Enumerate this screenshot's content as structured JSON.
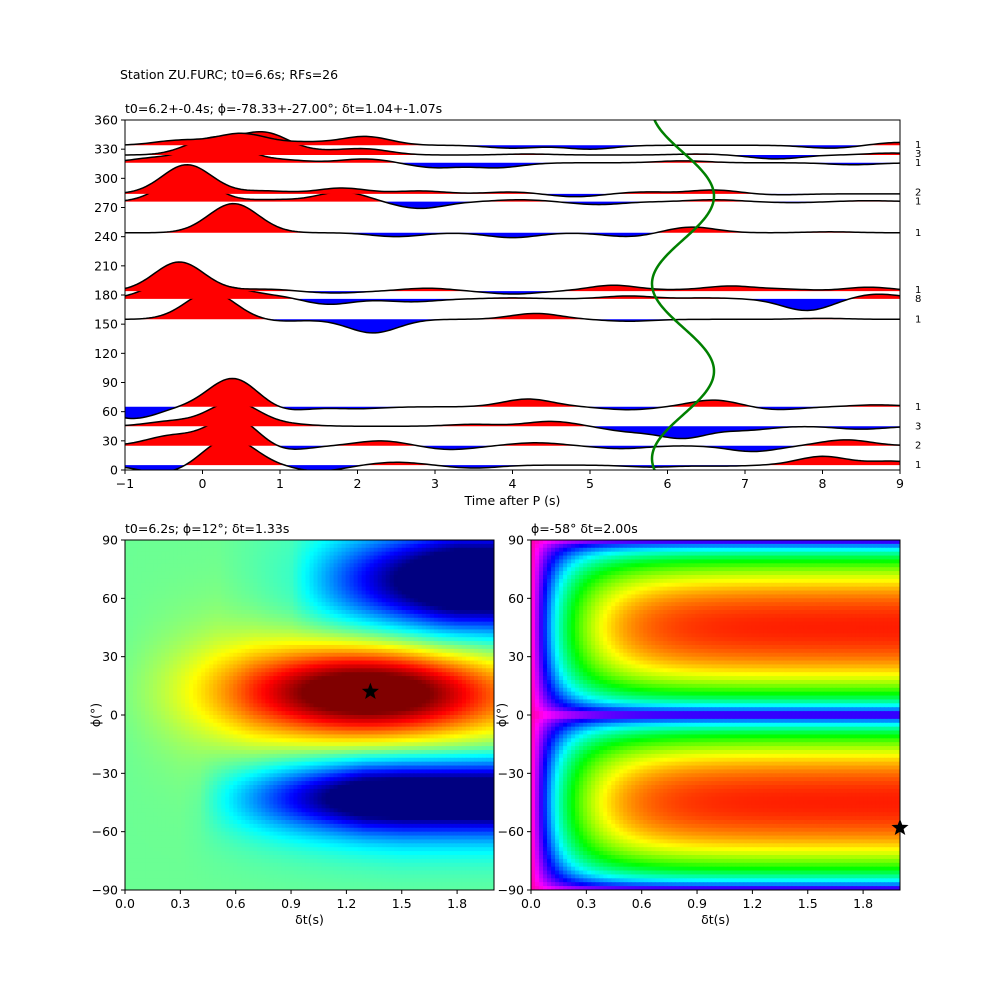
{
  "suptitle": "Station ZU.FURC; t0=6.6s; RFs=26",
  "chart_data": [
    {
      "id": "receiver-functions",
      "type": "line",
      "title": "t0=6.2+-0.4s; ϕ=-78.33+-27.00°; δt=1.04+-1.07s",
      "xlabel": "Time after P (s)",
      "ylabel": "",
      "xlim": [
        -1,
        9
      ],
      "ylim": [
        0,
        360
      ],
      "xticks": [
        "−1",
        "0",
        "1",
        "2",
        "3",
        "4",
        "5",
        "6",
        "7",
        "8",
        "9"
      ],
      "yticks": [
        "0",
        "30",
        "60",
        "90",
        "120",
        "150",
        "180",
        "210",
        "240",
        "270",
        "300",
        "330",
        "360"
      ],
      "positive_fill": "#ff0000",
      "negative_fill": "#0000ff",
      "traces": [
        {
          "baz": 5,
          "count": "1",
          "peaks": [
            [
              -0.5,
              -8
            ],
            [
              0.35,
              28
            ],
            [
              0.9,
              0
            ],
            [
              1.5,
              -6
            ],
            [
              2.5,
              3
            ],
            [
              3.5,
              -3
            ],
            [
              5.8,
              -2
            ],
            [
              6.7,
              -1
            ],
            [
              8.0,
              9
            ],
            [
              8.9,
              4
            ]
          ]
        },
        {
          "baz": 25,
          "count": "2",
          "peaks": [
            [
              -0.4,
              10
            ],
            [
              0.4,
              30
            ],
            [
              1.0,
              -6
            ],
            [
              2.3,
              5
            ],
            [
              3.2,
              -4
            ],
            [
              4.3,
              3
            ],
            [
              5.4,
              -3
            ],
            [
              7.1,
              -6
            ],
            [
              8.3,
              6
            ],
            [
              9.0,
              0
            ]
          ]
        },
        {
          "baz": 45,
          "count": "3",
          "peaks": [
            [
              -0.4,
              5
            ],
            [
              0.4,
              25
            ],
            [
              1.1,
              2
            ],
            [
              3.5,
              2
            ],
            [
              4.5,
              5
            ],
            [
              5.5,
              -5
            ],
            [
              6.2,
              -12
            ],
            [
              7.0,
              -4
            ],
            [
              8.5,
              -3
            ]
          ]
        },
        {
          "baz": 65,
          "count": "1",
          "peaks": [
            [
              -0.9,
              -12
            ],
            [
              0.4,
              30
            ],
            [
              1.0,
              -5
            ],
            [
              2.0,
              -2
            ],
            [
              3.0,
              0
            ],
            [
              4.2,
              8
            ],
            [
              5.5,
              -3
            ],
            [
              6.6,
              7
            ],
            [
              7.4,
              -3
            ],
            [
              8.7,
              2
            ]
          ]
        },
        {
          "baz": 155,
          "count": "1",
          "peaks": [
            [
              0.1,
              28
            ],
            [
              1.0,
              -2
            ],
            [
              2.2,
              -14
            ],
            [
              3.3,
              0
            ],
            [
              4.3,
              6
            ],
            [
              5.5,
              -2
            ],
            [
              6.4,
              0
            ],
            [
              7.2,
              0
            ],
            [
              8.0,
              1
            ]
          ]
        },
        {
          "baz": 176,
          "count": "8",
          "peaks": [
            [
              -0.4,
              18
            ],
            [
              0.3,
              11
            ],
            [
              1.0,
              3
            ],
            [
              1.6,
              -6
            ],
            [
              2.7,
              -3
            ],
            [
              4.0,
              1
            ],
            [
              5.5,
              3
            ],
            [
              6.5,
              1
            ],
            [
              7.8,
              -12
            ],
            [
              8.7,
              5
            ]
          ]
        },
        {
          "baz": 184,
          "count": "1",
          "peaks": [
            [
              -0.3,
              30
            ],
            [
              0.8,
              2
            ],
            [
              1.7,
              -2
            ],
            [
              2.9,
              3
            ],
            [
              4.0,
              -3
            ],
            [
              5.3,
              6
            ],
            [
              6.1,
              1
            ],
            [
              6.8,
              5
            ],
            [
              7.5,
              2
            ],
            [
              8.6,
              4
            ]
          ]
        },
        {
          "baz": 244,
          "count": "1",
          "peaks": [
            [
              0.4,
              30
            ],
            [
              1.7,
              0
            ],
            [
              2.5,
              -4
            ],
            [
              4.0,
              -5
            ],
            [
              5.5,
              -4
            ],
            [
              6.3,
              6
            ],
            [
              7.1,
              0
            ],
            [
              8.1,
              1
            ]
          ]
        },
        {
          "baz": 276,
          "count": "1",
          "peaks": [
            [
              -0.2,
              28
            ],
            [
              0.9,
              2
            ],
            [
              1.8,
              10
            ],
            [
              2.8,
              -7
            ],
            [
              4.1,
              2
            ],
            [
              5.1,
              -3
            ],
            [
              6.0,
              0
            ],
            [
              6.6,
              2
            ],
            [
              7.6,
              -1
            ],
            [
              8.6,
              1
            ]
          ]
        },
        {
          "baz": 284,
          "count": "2",
          "peaks": [
            [
              -0.2,
              30
            ],
            [
              0.8,
              3
            ],
            [
              1.8,
              6
            ],
            [
              2.8,
              3
            ],
            [
              4.0,
              2
            ],
            [
              4.8,
              -3
            ],
            [
              5.7,
              2
            ],
            [
              6.6,
              4
            ],
            [
              7.4,
              -1
            ],
            [
              8.5,
              0
            ]
          ]
        },
        {
          "baz": 316,
          "count": "1",
          "peaks": [
            [
              -0.6,
              5
            ],
            [
              0.2,
              25
            ],
            [
              1.0,
              3
            ],
            [
              2.1,
              4
            ],
            [
              3.0,
              -5
            ],
            [
              3.8,
              -5
            ],
            [
              5.0,
              0
            ],
            [
              6.2,
              2
            ],
            [
              7.5,
              0
            ],
            [
              8.4,
              -2
            ]
          ]
        },
        {
          "baz": 324,
          "count": "3",
          "peaks": [
            [
              0.1,
              16
            ],
            [
              0.8,
              22
            ],
            [
              1.5,
              3
            ],
            [
              2.1,
              6
            ],
            [
              3.0,
              0
            ],
            [
              4.2,
              1
            ],
            [
              5.5,
              0
            ],
            [
              6.4,
              1
            ],
            [
              7.4,
              -4
            ],
            [
              8.9,
              2
            ]
          ]
        },
        {
          "baz": 334,
          "count": "1",
          "peaks": [
            [
              -0.3,
              5
            ],
            [
              0.5,
              12
            ],
            [
              1.3,
              3
            ],
            [
              2.1,
              9
            ],
            [
              3.0,
              0
            ],
            [
              4.0,
              -3
            ],
            [
              5.0,
              -4
            ],
            [
              6.0,
              0
            ],
            [
              7.2,
              0
            ],
            [
              8.1,
              -3
            ],
            [
              9.0,
              3
            ]
          ]
        }
      ],
      "t0_curve": {
        "color": "#008000",
        "t0": 6.2,
        "amplitude": 0.4,
        "phase_deg": -78.33
      }
    },
    {
      "id": "grid-search-t0",
      "type": "heatmap",
      "title": "t0=6.2s; ϕ=12°; δt=1.33s",
      "xlabel": "δt(s)",
      "ylabel": "ϕ(°)",
      "xlim": [
        0,
        2
      ],
      "ylim": [
        -90,
        90
      ],
      "xticks": [
        "0.0",
        "0.3",
        "0.6",
        "0.9",
        "1.2",
        "1.5",
        "1.8"
      ],
      "yticks": [
        "−90",
        "−60",
        "−30",
        "0",
        "30",
        "60",
        "90"
      ],
      "colormap": "jet",
      "best": {
        "dt": 1.33,
        "phi": 12
      }
    },
    {
      "id": "grid-search-phi",
      "type": "heatmap",
      "title": "ϕ=-58° δt=2.00s",
      "xlabel": "δt(s)",
      "ylabel": "ϕ(°)",
      "xlim": [
        0,
        2
      ],
      "ylim": [
        -90,
        90
      ],
      "xticks": [
        "0.0",
        "0.3",
        "0.6",
        "0.9",
        "1.2",
        "1.5",
        "1.8"
      ],
      "yticks": [
        "−90",
        "−60",
        "−30",
        "0",
        "30",
        "60",
        "90"
      ],
      "colormap": "hsv",
      "best": {
        "dt": 2.0,
        "phi": -58
      }
    }
  ]
}
